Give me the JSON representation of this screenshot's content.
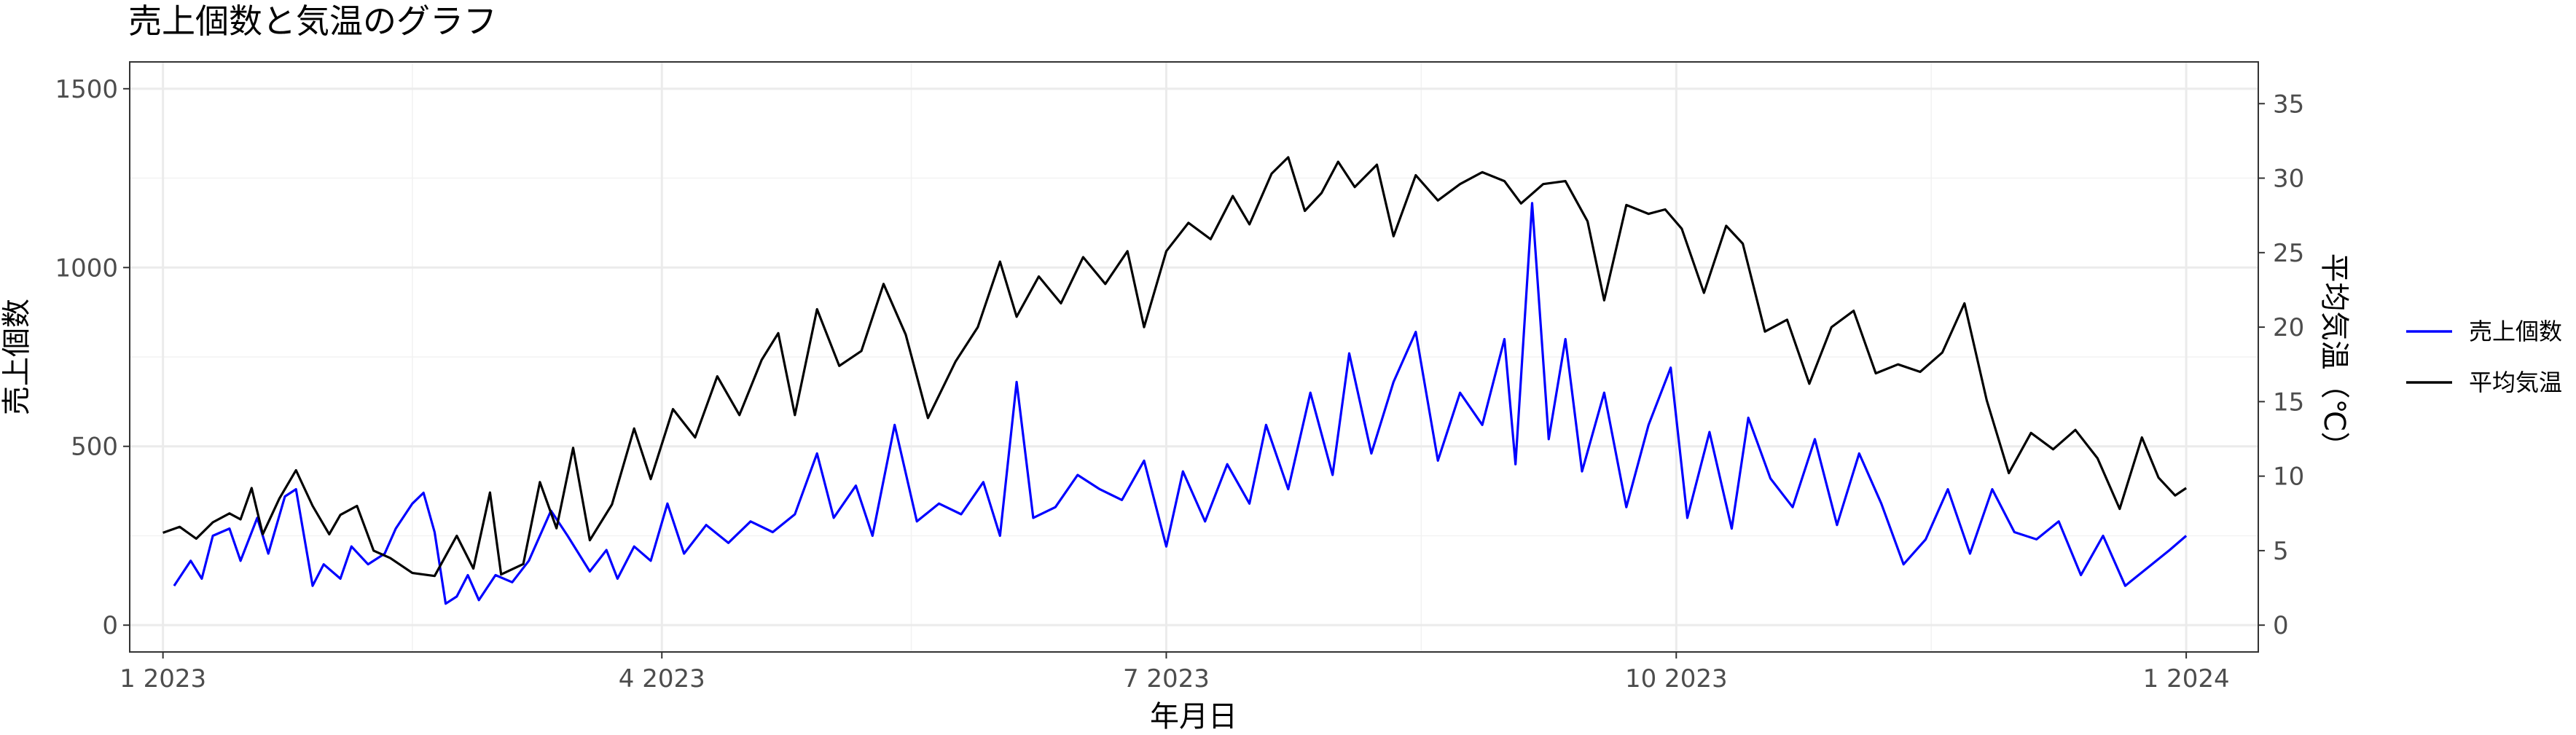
{
  "chart_data": {
    "type": "line",
    "title": "売上個数と気温のグラフ",
    "xlabel": "年月日",
    "ylabel": "売上個数",
    "y2label": "平均気温（℃）",
    "ylim": [
      -75,
      1575
    ],
    "y2lim": [
      -1.8,
      37.8
    ],
    "x_start": "2023-01-01",
    "x_end": "2024-01-01",
    "x_ticks": [
      {
        "label": "1 2023",
        "date": "2023-01-01"
      },
      {
        "label": "4 2023",
        "date": "2023-04-01"
      },
      {
        "label": "7 2023",
        "date": "2023-07-01"
      },
      {
        "label": "10 2023",
        "date": "2023-10-01"
      },
      {
        "label": "1 2024",
        "date": "2024-01-01"
      }
    ],
    "y_ticks": [
      0,
      500,
      1000,
      1500
    ],
    "y2_ticks": [
      0,
      5,
      10,
      15,
      20,
      25,
      30,
      35
    ],
    "grid": true,
    "legend_position": "right",
    "series": [
      {
        "name": "売上個数",
        "axis": "left",
        "color": "#0000ff",
        "points": [
          [
            "2023-01-03",
            110
          ],
          [
            "2023-01-06",
            180
          ],
          [
            "2023-01-08",
            130
          ],
          [
            "2023-01-10",
            250
          ],
          [
            "2023-01-13",
            270
          ],
          [
            "2023-01-15",
            180
          ],
          [
            "2023-01-18",
            300
          ],
          [
            "2023-01-20",
            200
          ],
          [
            "2023-01-23",
            360
          ],
          [
            "2023-01-25",
            380
          ],
          [
            "2023-01-28",
            110
          ],
          [
            "2023-01-30",
            170
          ],
          [
            "2023-02-02",
            130
          ],
          [
            "2023-02-04",
            220
          ],
          [
            "2023-02-07",
            170
          ],
          [
            "2023-02-10",
            200
          ],
          [
            "2023-02-12",
            270
          ],
          [
            "2023-02-15",
            340
          ],
          [
            "2023-02-17",
            370
          ],
          [
            "2023-02-19",
            260
          ],
          [
            "2023-02-21",
            60
          ],
          [
            "2023-02-23",
            80
          ],
          [
            "2023-02-25",
            140
          ],
          [
            "2023-02-27",
            70
          ],
          [
            "2023-03-02",
            140
          ],
          [
            "2023-03-05",
            120
          ],
          [
            "2023-03-08",
            180
          ],
          [
            "2023-03-12",
            320
          ],
          [
            "2023-03-15",
            250
          ],
          [
            "2023-03-19",
            150
          ],
          [
            "2023-03-22",
            210
          ],
          [
            "2023-03-24",
            130
          ],
          [
            "2023-03-27",
            220
          ],
          [
            "2023-03-30",
            180
          ],
          [
            "2023-04-02",
            340
          ],
          [
            "2023-04-05",
            200
          ],
          [
            "2023-04-09",
            280
          ],
          [
            "2023-04-13",
            230
          ],
          [
            "2023-04-17",
            290
          ],
          [
            "2023-04-21",
            260
          ],
          [
            "2023-04-25",
            310
          ],
          [
            "2023-04-29",
            480
          ],
          [
            "2023-05-02",
            300
          ],
          [
            "2023-05-06",
            390
          ],
          [
            "2023-05-09",
            250
          ],
          [
            "2023-05-13",
            560
          ],
          [
            "2023-05-17",
            290
          ],
          [
            "2023-05-21",
            340
          ],
          [
            "2023-05-25",
            310
          ],
          [
            "2023-05-29",
            400
          ],
          [
            "2023-06-01",
            250
          ],
          [
            "2023-06-04",
            680
          ],
          [
            "2023-06-07",
            300
          ],
          [
            "2023-06-11",
            330
          ],
          [
            "2023-06-15",
            420
          ],
          [
            "2023-06-19",
            380
          ],
          [
            "2023-06-23",
            350
          ],
          [
            "2023-06-27",
            460
          ],
          [
            "2023-07-01",
            220
          ],
          [
            "2023-07-04",
            430
          ],
          [
            "2023-07-08",
            290
          ],
          [
            "2023-07-12",
            450
          ],
          [
            "2023-07-16",
            340
          ],
          [
            "2023-07-19",
            560
          ],
          [
            "2023-07-23",
            380
          ],
          [
            "2023-07-27",
            650
          ],
          [
            "2023-07-31",
            420
          ],
          [
            "2023-08-03",
            760
          ],
          [
            "2023-08-07",
            480
          ],
          [
            "2023-08-11",
            680
          ],
          [
            "2023-08-15",
            820
          ],
          [
            "2023-08-19",
            460
          ],
          [
            "2023-08-23",
            650
          ],
          [
            "2023-08-27",
            560
          ],
          [
            "2023-08-31",
            800
          ],
          [
            "2023-09-02",
            450
          ],
          [
            "2023-09-05",
            1180
          ],
          [
            "2023-09-08",
            520
          ],
          [
            "2023-09-11",
            800
          ],
          [
            "2023-09-14",
            430
          ],
          [
            "2023-09-18",
            650
          ],
          [
            "2023-09-22",
            330
          ],
          [
            "2023-09-26",
            560
          ],
          [
            "2023-09-30",
            720
          ],
          [
            "2023-10-03",
            300
          ],
          [
            "2023-10-07",
            540
          ],
          [
            "2023-10-11",
            270
          ],
          [
            "2023-10-14",
            580
          ],
          [
            "2023-10-18",
            410
          ],
          [
            "2023-10-22",
            330
          ],
          [
            "2023-10-26",
            520
          ],
          [
            "2023-10-30",
            280
          ],
          [
            "2023-11-03",
            480
          ],
          [
            "2023-11-07",
            340
          ],
          [
            "2023-11-11",
            170
          ],
          [
            "2023-11-15",
            240
          ],
          [
            "2023-11-19",
            380
          ],
          [
            "2023-11-23",
            200
          ],
          [
            "2023-11-27",
            380
          ],
          [
            "2023-12-01",
            260
          ],
          [
            "2023-12-05",
            240
          ],
          [
            "2023-12-09",
            290
          ],
          [
            "2023-12-13",
            140
          ],
          [
            "2023-12-17",
            250
          ],
          [
            "2023-12-21",
            110
          ],
          [
            "2023-12-25",
            160
          ],
          [
            "2023-12-29",
            210
          ],
          [
            "2024-01-01",
            250
          ]
        ]
      },
      {
        "name": "平均気温",
        "axis": "right",
        "color": "#000000",
        "points": [
          [
            "2023-01-01",
            6.2
          ],
          [
            "2023-01-04",
            6.6
          ],
          [
            "2023-01-07",
            5.8
          ],
          [
            "2023-01-10",
            6.9
          ],
          [
            "2023-01-13",
            7.5
          ],
          [
            "2023-01-15",
            7.1
          ],
          [
            "2023-01-17",
            9.2
          ],
          [
            "2023-01-19",
            6.1
          ],
          [
            "2023-01-22",
            8.5
          ],
          [
            "2023-01-25",
            10.4
          ],
          [
            "2023-01-28",
            8.0
          ],
          [
            "2023-01-31",
            6.1
          ],
          [
            "2023-02-02",
            7.4
          ],
          [
            "2023-02-05",
            8.0
          ],
          [
            "2023-02-08",
            5.0
          ],
          [
            "2023-02-11",
            4.5
          ],
          [
            "2023-02-15",
            3.5
          ],
          [
            "2023-02-19",
            3.3
          ],
          [
            "2023-02-23",
            6.0
          ],
          [
            "2023-02-26",
            3.8
          ],
          [
            "2023-03-01",
            8.9
          ],
          [
            "2023-03-03",
            3.4
          ],
          [
            "2023-03-07",
            4.1
          ],
          [
            "2023-03-10",
            9.6
          ],
          [
            "2023-03-13",
            6.5
          ],
          [
            "2023-03-16",
            11.9
          ],
          [
            "2023-03-19",
            5.7
          ],
          [
            "2023-03-23",
            8.1
          ],
          [
            "2023-03-27",
            13.2
          ],
          [
            "2023-03-30",
            9.8
          ],
          [
            "2023-04-03",
            14.5
          ],
          [
            "2023-04-07",
            12.6
          ],
          [
            "2023-04-11",
            16.7
          ],
          [
            "2023-04-15",
            14.1
          ],
          [
            "2023-04-19",
            17.8
          ],
          [
            "2023-04-22",
            19.6
          ],
          [
            "2023-04-25",
            14.1
          ],
          [
            "2023-04-29",
            21.2
          ],
          [
            "2023-05-03",
            17.4
          ],
          [
            "2023-05-07",
            18.4
          ],
          [
            "2023-05-11",
            22.9
          ],
          [
            "2023-05-15",
            19.5
          ],
          [
            "2023-05-19",
            13.9
          ],
          [
            "2023-05-24",
            17.7
          ],
          [
            "2023-05-28",
            20.0
          ],
          [
            "2023-06-01",
            24.4
          ],
          [
            "2023-06-04",
            20.7
          ],
          [
            "2023-06-08",
            23.4
          ],
          [
            "2023-06-12",
            21.6
          ],
          [
            "2023-06-16",
            24.7
          ],
          [
            "2023-06-20",
            22.9
          ],
          [
            "2023-06-24",
            25.1
          ],
          [
            "2023-06-27",
            20.0
          ],
          [
            "2023-07-01",
            25.1
          ],
          [
            "2023-07-05",
            27.0
          ],
          [
            "2023-07-09",
            25.9
          ],
          [
            "2023-07-13",
            28.8
          ],
          [
            "2023-07-16",
            26.9
          ],
          [
            "2023-07-20",
            30.3
          ],
          [
            "2023-07-23",
            31.4
          ],
          [
            "2023-07-26",
            27.8
          ],
          [
            "2023-07-29",
            29.0
          ],
          [
            "2023-08-01",
            31.1
          ],
          [
            "2023-08-04",
            29.4
          ],
          [
            "2023-08-08",
            30.9
          ],
          [
            "2023-08-11",
            26.1
          ],
          [
            "2023-08-15",
            30.2
          ],
          [
            "2023-08-19",
            28.5
          ],
          [
            "2023-08-23",
            29.6
          ],
          [
            "2023-08-27",
            30.4
          ],
          [
            "2023-08-31",
            29.8
          ],
          [
            "2023-09-03",
            28.3
          ],
          [
            "2023-09-07",
            29.6
          ],
          [
            "2023-09-11",
            29.8
          ],
          [
            "2023-09-15",
            27.1
          ],
          [
            "2023-09-18",
            21.8
          ],
          [
            "2023-09-22",
            28.2
          ],
          [
            "2023-09-26",
            27.6
          ],
          [
            "2023-09-29",
            27.9
          ],
          [
            "2023-10-02",
            26.6
          ],
          [
            "2023-10-06",
            22.3
          ],
          [
            "2023-10-10",
            26.8
          ],
          [
            "2023-10-13",
            25.6
          ],
          [
            "2023-10-17",
            19.7
          ],
          [
            "2023-10-21",
            20.5
          ],
          [
            "2023-10-25",
            16.2
          ],
          [
            "2023-10-29",
            20.0
          ],
          [
            "2023-11-02",
            21.1
          ],
          [
            "2023-11-06",
            16.9
          ],
          [
            "2023-11-10",
            17.5
          ],
          [
            "2023-11-14",
            17.0
          ],
          [
            "2023-11-18",
            18.3
          ],
          [
            "2023-11-22",
            21.6
          ],
          [
            "2023-11-26",
            15.1
          ],
          [
            "2023-11-30",
            10.2
          ],
          [
            "2023-12-04",
            12.9
          ],
          [
            "2023-12-08",
            11.8
          ],
          [
            "2023-12-12",
            13.1
          ],
          [
            "2023-12-16",
            11.2
          ],
          [
            "2023-12-20",
            7.8
          ],
          [
            "2023-12-24",
            12.6
          ],
          [
            "2023-12-27",
            9.9
          ],
          [
            "2023-12-30",
            8.7
          ],
          [
            "2024-01-01",
            9.2
          ]
        ]
      }
    ]
  }
}
